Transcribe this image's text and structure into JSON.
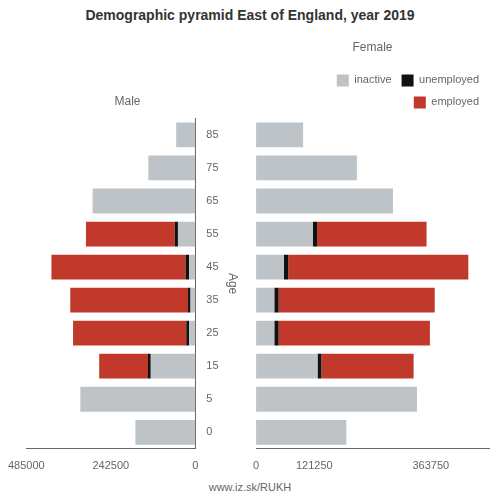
{
  "chart_data": [
    {
      "type": "bar",
      "orientation": "horizontal",
      "stacked": true,
      "title": "Demographic pyramid East of England, year 2019",
      "subtitle": "Male",
      "ylabel": "Age",
      "categories": [
        0,
        5,
        15,
        25,
        35,
        45,
        55,
        65,
        75,
        85
      ],
      "series": [
        {
          "name": "inactive",
          "color": "#bdc3c7",
          "values": [
            172000,
            330000,
            128000,
            18000,
            14000,
            18000,
            50000,
            295000,
            135000,
            55000
          ]
        },
        {
          "name": "unemployed",
          "color": "#111111",
          "values": [
            0,
            0,
            8000,
            8000,
            7000,
            10000,
            9000,
            0,
            0,
            0
          ]
        },
        {
          "name": "employed",
          "color": "#c0392b",
          "values": [
            0,
            0,
            140000,
            325000,
            338000,
            385000,
            255000,
            0,
            0,
            0
          ]
        }
      ],
      "xlim": [
        485000,
        0
      ],
      "xticks": [
        485000,
        242500,
        0
      ],
      "grid": false
    },
    {
      "type": "bar",
      "orientation": "horizontal",
      "stacked": true,
      "subtitle": "Female",
      "categories": [
        0,
        5,
        15,
        25,
        35,
        45,
        55,
        65,
        75,
        85
      ],
      "series": [
        {
          "name": "inactive",
          "color": "#bdc3c7",
          "values": [
            188000,
            335000,
            128000,
            38000,
            38000,
            58000,
            118000,
            285000,
            210000,
            98000
          ]
        },
        {
          "name": "unemployed",
          "color": "#111111",
          "values": [
            0,
            0,
            8000,
            9000,
            9000,
            9000,
            9000,
            0,
            0,
            0
          ]
        },
        {
          "name": "employed",
          "color": "#c0392b",
          "values": [
            0,
            0,
            192000,
            315000,
            325000,
            375000,
            228000,
            0,
            0,
            0
          ]
        }
      ],
      "xlim": [
        0,
        485000
      ],
      "xticks": [
        0,
        121250,
        363750
      ],
      "grid": false,
      "legend": "upper right",
      "tick_labels": "x",
      "annotations": [
        "www.iz.sk/RUKH"
      ]
    }
  ]
}
